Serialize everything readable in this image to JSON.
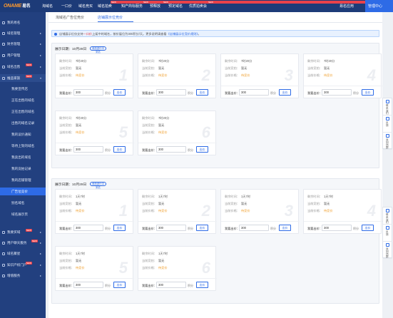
{
  "brand": {
    "logo": "ONAME",
    "logo_cn": "易名"
  },
  "nav": [
    {
      "label": "淘域名",
      "badge": ""
    },
    {
      "label": "一口价",
      "badge": ""
    },
    {
      "label": "域名竞买",
      "badge": ""
    },
    {
      "label": "域名拍卖",
      "badge": "NEW"
    },
    {
      "label": "知产商标服务",
      "badge": "NEW"
    },
    {
      "label": "预释放",
      "badge": "NEW"
    },
    {
      "label": "预定域名",
      "badge": ""
    },
    {
      "label": "优质拍卖会",
      "badge": "NEW"
    }
  ],
  "nav_right": {
    "app": "易名应用",
    "admin": "管理中心"
  },
  "sidebar": {
    "items": [
      {
        "label": "我的易名",
        "badge": ""
      },
      {
        "label": "域名管理",
        "badge": ""
      },
      {
        "label": "财务管理",
        "badge": ""
      },
      {
        "label": "用户管理",
        "badge": ""
      },
      {
        "label": "域名出售",
        "badge": "NEW"
      },
      {
        "label": "推品家族",
        "badge": "NEW"
      }
    ],
    "subs": [
      "我要宣传店",
      "正在出售的域名",
      "正在出售的域名",
      "出售的域名记录",
      "我的议价通知",
      "等待上架的域名",
      "我卖出的域名",
      "我的竞拍记录",
      "我的店铺管理",
      "广告位竞价",
      "别名域名",
      "域名展示页"
    ],
    "bottom": [
      {
        "label": "我要买域",
        "badge": "NEW"
      },
      {
        "label": "用户聊天服务",
        "badge": "NEW"
      },
      {
        "label": "域名聚星",
        "badge": ""
      },
      {
        "label": "知识产权门户",
        "badge": "NEW"
      },
      {
        "label": "增值服务",
        "badge": ""
      }
    ]
  },
  "tabs": [
    "淘域名广告位竞价",
    "店铺展示位竞价"
  ],
  "notice": {
    "part1": "店铺展示位仅支持",
    "highlight": "一口价",
    "part2": "上架中的域名，按价展位为300积分/天。更多说明请查看",
    "link": "《店铺展示位竞价规则》",
    "end": "。"
  },
  "labels": {
    "rem": "剩余时间：",
    "hold": "当前竞拍：",
    "status": "当前价格：",
    "bid": "我要出价：",
    "unit": "积分",
    "btn": "出价",
    "none": "暂无",
    "pending": "待竞价"
  },
  "sections": [
    {
      "date": "展示日期：10月28日",
      "tag": "竞拍进行中 到达",
      "cards": [
        {
          "no": "1",
          "time": "7时20分",
          "bid": "300"
        },
        {
          "no": "2",
          "time": "7时20分",
          "bid": "300"
        },
        {
          "no": "3",
          "time": "7时20分",
          "bid": "300"
        },
        {
          "no": "4",
          "time": "7时20分",
          "bid": "300"
        },
        {
          "no": "5",
          "time": "7时20分",
          "bid": "300"
        },
        {
          "no": "6",
          "time": "7时20分",
          "bid": "300"
        }
      ]
    },
    {
      "date": "展示日期：10月29日",
      "tag": "竞拍进行中 到达",
      "cards": [
        {
          "no": "1",
          "time": "1天7时",
          "bid": "300"
        },
        {
          "no": "2",
          "time": "1天7时",
          "bid": "300"
        },
        {
          "no": "3",
          "time": "1天7时",
          "bid": "300"
        },
        {
          "no": "4",
          "time": "1天7时",
          "bid": "300"
        },
        {
          "no": "5",
          "time": "1天7时",
          "bid": "300"
        },
        {
          "no": "6",
          "time": "1天7时",
          "bid": "300"
        }
      ]
    }
  ],
  "float_panel": [
    "联系我们",
    "反馈",
    "返回顶部"
  ]
}
